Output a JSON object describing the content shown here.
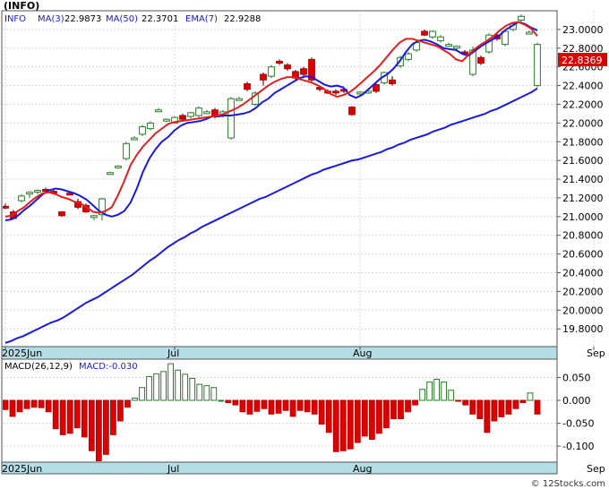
{
  "header": {
    "symbol": "(INFO)",
    "ticker": "INFO",
    "ma3_label": "MA(3)",
    "ma3_value": "22.9873",
    "ma50_label": "MA(50)",
    "ma50_value": "22.3701",
    "ema7_label": "EMA(7)",
    "ema7_value": "22.9288",
    "last_price": "22.8369"
  },
  "macd_header": {
    "label": "MACD(26,12,9)",
    "value_label": "MACD:-0.030"
  },
  "footer": {
    "watermark": "© 12Stocks.com"
  },
  "colors": {
    "up": "#2a7a2a",
    "down": "#dd0000",
    "ma_line": "#1a1adc",
    "ema_line": "#e02020",
    "axis_strip": "#b4dde6",
    "last_price_box": "#dd0000"
  },
  "chart_data": [
    {
      "type": "candlestick",
      "title": "(INFO)",
      "ylim": [
        19.62,
        23.2
      ],
      "y_ticks": [
        "19.8000",
        "20.0000",
        "20.2000",
        "20.4000",
        "20.6000",
        "20.8000",
        "21.0000",
        "21.2000",
        "21.4000",
        "21.6000",
        "21.8000",
        "22.0000",
        "22.2000",
        "22.4000",
        "22.6000",
        "22.8000",
        "23.0000"
      ],
      "x_labels": [
        {
          "label": "2025Jun",
          "index": 0
        },
        {
          "label": "Jul",
          "index": 21
        },
        {
          "label": "Aug",
          "index": 44
        },
        {
          "label": "Sep",
          "index": 73
        }
      ],
      "candles": [
        {
          "o": 21.11,
          "h": 21.14,
          "l": 21.08,
          "c": 21.1
        },
        {
          "o": 21.05,
          "h": 21.07,
          "l": 20.97,
          "c": 20.98
        },
        {
          "o": 21.17,
          "h": 21.24,
          "l": 21.15,
          "c": 21.22
        },
        {
          "o": 21.25,
          "h": 21.27,
          "l": 21.2,
          "c": 21.26
        },
        {
          "o": 21.27,
          "h": 21.29,
          "l": 21.24,
          "c": 21.28
        },
        {
          "o": 21.29,
          "h": 21.31,
          "l": 21.26,
          "c": 21.28
        },
        {
          "o": 21.27,
          "h": 21.3,
          "l": 21.24,
          "c": 21.25
        },
        {
          "o": 21.05,
          "h": 21.06,
          "l": 21.0,
          "c": 21.01
        },
        {
          "o": 21.25,
          "h": 21.27,
          "l": 21.23,
          "c": 21.24
        },
        {
          "o": 21.16,
          "h": 21.19,
          "l": 21.08,
          "c": 21.1
        },
        {
          "o": 21.12,
          "h": 21.14,
          "l": 21.04,
          "c": 21.05
        },
        {
          "o": 21.0,
          "h": 21.02,
          "l": 20.96,
          "c": 21.01
        },
        {
          "o": 21.02,
          "h": 21.2,
          "l": 20.96,
          "c": 21.19
        },
        {
          "o": 21.46,
          "h": 21.48,
          "l": 21.45,
          "c": 21.47
        },
        {
          "o": 21.53,
          "h": 21.55,
          "l": 21.51,
          "c": 21.54
        },
        {
          "o": 21.62,
          "h": 21.8,
          "l": 21.6,
          "c": 21.78
        },
        {
          "o": 21.84,
          "h": 21.86,
          "l": 21.82,
          "c": 21.84
        },
        {
          "o": 21.88,
          "h": 21.98,
          "l": 21.86,
          "c": 21.96
        },
        {
          "o": 21.94,
          "h": 22.02,
          "l": 21.92,
          "c": 22.0
        },
        {
          "o": 22.14,
          "h": 22.16,
          "l": 22.12,
          "c": 22.14
        },
        {
          "o": 22.03,
          "h": 22.05,
          "l": 22.01,
          "c": 22.04
        },
        {
          "o": 22.0,
          "h": 22.07,
          "l": 21.99,
          "c": 22.06
        },
        {
          "o": 22.08,
          "h": 22.1,
          "l": 22.03,
          "c": 22.04
        },
        {
          "o": 22.07,
          "h": 22.12,
          "l": 22.05,
          "c": 22.11
        },
        {
          "o": 22.08,
          "h": 22.18,
          "l": 22.06,
          "c": 22.16
        },
        {
          "o": 22.12,
          "h": 22.14,
          "l": 22.1,
          "c": 22.12
        },
        {
          "o": 22.14,
          "h": 22.16,
          "l": 22.05,
          "c": 22.07
        },
        {
          "o": 22.08,
          "h": 22.14,
          "l": 22.06,
          "c": 22.12
        },
        {
          "o": 21.84,
          "h": 22.28,
          "l": 21.82,
          "c": 22.26
        },
        {
          "o": 22.26,
          "h": 22.28,
          "l": 22.24,
          "c": 22.26
        },
        {
          "o": 22.42,
          "h": 22.44,
          "l": 22.34,
          "c": 22.36
        },
        {
          "o": 22.2,
          "h": 22.34,
          "l": 22.18,
          "c": 22.32
        },
        {
          "o": 22.52,
          "h": 22.54,
          "l": 22.4,
          "c": 22.46
        },
        {
          "o": 22.5,
          "h": 22.62,
          "l": 22.48,
          "c": 22.6
        },
        {
          "o": 22.66,
          "h": 22.68,
          "l": 22.62,
          "c": 22.64
        },
        {
          "o": 22.62,
          "h": 22.64,
          "l": 22.56,
          "c": 22.58
        },
        {
          "o": 22.55,
          "h": 22.57,
          "l": 22.46,
          "c": 22.48
        },
        {
          "o": 22.58,
          "h": 22.6,
          "l": 22.48,
          "c": 22.52
        },
        {
          "o": 22.68,
          "h": 22.7,
          "l": 22.44,
          "c": 22.46
        },
        {
          "o": 22.38,
          "h": 22.4,
          "l": 22.34,
          "c": 22.36
        },
        {
          "o": 22.34,
          "h": 22.36,
          "l": 22.31,
          "c": 22.33
        },
        {
          "o": 22.34,
          "h": 22.36,
          "l": 22.3,
          "c": 22.33
        },
        {
          "o": 22.36,
          "h": 22.38,
          "l": 22.32,
          "c": 22.34
        },
        {
          "o": 22.17,
          "h": 22.18,
          "l": 22.08,
          "c": 22.09
        },
        {
          "o": 22.32,
          "h": 22.34,
          "l": 22.3,
          "c": 22.33
        },
        {
          "o": 22.33,
          "h": 22.36,
          "l": 22.31,
          "c": 22.34
        },
        {
          "o": 22.41,
          "h": 22.42,
          "l": 22.32,
          "c": 22.34
        },
        {
          "o": 22.43,
          "h": 22.55,
          "l": 22.41,
          "c": 22.54
        },
        {
          "o": 22.46,
          "h": 22.5,
          "l": 22.4,
          "c": 22.42
        },
        {
          "o": 22.61,
          "h": 22.72,
          "l": 22.59,
          "c": 22.7
        },
        {
          "o": 22.68,
          "h": 22.76,
          "l": 22.66,
          "c": 22.74
        },
        {
          "o": 22.78,
          "h": 22.88,
          "l": 22.76,
          "c": 22.86
        },
        {
          "o": 22.98,
          "h": 23.0,
          "l": 22.93,
          "c": 22.94
        },
        {
          "o": 22.92,
          "h": 22.99,
          "l": 22.9,
          "c": 22.98
        },
        {
          "o": 22.88,
          "h": 22.94,
          "l": 22.86,
          "c": 22.92
        },
        {
          "o": 22.84,
          "h": 22.86,
          "l": 22.82,
          "c": 22.84
        },
        {
          "o": 22.8,
          "h": 22.83,
          "l": 22.78,
          "c": 22.82
        },
        {
          "o": 22.76,
          "h": 22.78,
          "l": 22.72,
          "c": 22.74
        },
        {
          "o": 22.52,
          "h": 22.82,
          "l": 22.5,
          "c": 22.78
        },
        {
          "o": 22.7,
          "h": 22.72,
          "l": 22.62,
          "c": 22.64
        },
        {
          "o": 22.76,
          "h": 22.96,
          "l": 22.74,
          "c": 22.94
        },
        {
          "o": 22.94,
          "h": 22.96,
          "l": 22.88,
          "c": 22.9
        },
        {
          "o": 22.84,
          "h": 23.0,
          "l": 22.82,
          "c": 22.98
        },
        {
          "o": 23.0,
          "h": 23.08,
          "l": 22.98,
          "c": 23.06
        },
        {
          "o": 23.1,
          "h": 23.16,
          "l": 23.08,
          "c": 23.14
        },
        {
          "o": 22.97,
          "h": 22.99,
          "l": 22.95,
          "c": 22.97
        },
        {
          "o": 22.4,
          "h": 22.86,
          "l": 22.38,
          "c": 22.84
        }
      ],
      "ma3": [
        20.96,
        20.97,
        21.01,
        21.07,
        21.12,
        21.18,
        21.24,
        21.28,
        21.3,
        21.29,
        21.27,
        21.25,
        21.22,
        21.18,
        21.12,
        21.06,
        21.02,
        21.0,
        21.02,
        21.06,
        21.15,
        21.3,
        21.48,
        21.62,
        21.72,
        21.8,
        21.85,
        21.92,
        21.97,
        22.0,
        22.01,
        22.02,
        22.04,
        22.07,
        22.07,
        22.08,
        22.08,
        22.09,
        22.1,
        22.12,
        22.16,
        22.22,
        22.26,
        22.32,
        22.36,
        22.4,
        22.44,
        22.48,
        22.5,
        22.49,
        22.45,
        22.41,
        22.39,
        22.4,
        22.38,
        22.3,
        22.27,
        22.3,
        22.36,
        22.42,
        22.48,
        22.52,
        22.58,
        22.66,
        22.76,
        22.84,
        22.88,
        22.89,
        22.87,
        22.84,
        22.8,
        22.79,
        22.78,
        22.74,
        22.72,
        22.77,
        22.82,
        22.86,
        22.9,
        22.94,
        23.0,
        23.04,
        23.08,
        23.06,
        23.02,
        22.99
      ],
      "ema7": [
        21.0,
        21.01,
        21.06,
        21.1,
        21.16,
        21.21,
        21.25,
        21.26,
        21.24,
        21.21,
        21.19,
        21.16,
        21.14,
        21.1,
        21.05,
        21.04,
        21.06,
        21.1,
        21.23,
        21.38,
        21.55,
        21.66,
        21.75,
        21.82,
        21.89,
        21.94,
        21.99,
        22.01,
        22.02,
        22.03,
        22.04,
        22.05,
        22.06,
        22.07,
        22.08,
        22.1,
        22.13,
        22.16,
        22.2,
        22.25,
        22.3,
        22.35,
        22.4,
        22.44,
        22.47,
        22.49,
        22.49,
        22.47,
        22.45,
        22.43,
        22.4,
        22.36,
        22.31,
        22.28,
        22.3,
        22.33,
        22.38,
        22.44,
        22.5,
        22.56,
        22.63,
        22.71,
        22.79,
        22.86,
        22.9,
        22.9,
        22.88,
        22.86,
        22.84,
        22.82,
        22.78,
        22.74,
        22.68,
        22.66,
        22.73,
        22.79,
        22.84,
        22.88,
        22.93,
        22.99,
        23.04,
        23.07,
        23.08,
        23.05,
        23.01,
        22.93
      ],
      "ma50": [
        19.65,
        19.67,
        19.7,
        19.72,
        19.75,
        19.78,
        19.81,
        19.84,
        19.87,
        19.89,
        19.92,
        19.96,
        20.0,
        20.04,
        20.08,
        20.11,
        20.14,
        20.18,
        20.22,
        20.26,
        20.3,
        20.34,
        20.38,
        20.43,
        20.48,
        20.53,
        20.57,
        20.62,
        20.67,
        20.71,
        20.75,
        20.78,
        20.82,
        20.85,
        20.89,
        20.92,
        20.95,
        20.98,
        21.01,
        21.04,
        21.07,
        21.1,
        21.13,
        21.16,
        21.19,
        21.21,
        21.24,
        21.27,
        21.3,
        21.33,
        21.36,
        21.39,
        21.42,
        21.45,
        21.47,
        21.5,
        21.52,
        21.54,
        21.56,
        21.58,
        21.6,
        21.61,
        21.63,
        21.65,
        21.67,
        21.69,
        21.72,
        21.74,
        21.77,
        21.79,
        21.82,
        21.84,
        21.86,
        21.88,
        21.91,
        21.93,
        21.95,
        21.98,
        22.0,
        22.02,
        22.04,
        22.06,
        22.08,
        22.1,
        22.13,
        22.15,
        22.18,
        22.21,
        22.24,
        22.27,
        22.3,
        22.33,
        22.37
      ]
    },
    {
      "type": "bar",
      "title": "MACD(26,12,9)",
      "ylim": [
        -0.135,
        0.09
      ],
      "y_ticks": [
        "0.050",
        "0.000",
        "-0.050",
        "-0.100"
      ],
      "values": [
        -0.02,
        -0.035,
        -0.025,
        -0.018,
        -0.015,
        -0.016,
        -0.025,
        -0.062,
        -0.075,
        -0.072,
        -0.06,
        -0.08,
        -0.11,
        -0.132,
        -0.118,
        -0.075,
        -0.045,
        -0.015,
        0.005,
        0.028,
        0.052,
        0.058,
        0.063,
        0.08,
        0.066,
        0.057,
        0.048,
        0.035,
        0.032,
        0.028,
        0.0,
        -0.005,
        -0.01,
        -0.025,
        -0.03,
        -0.024,
        -0.018,
        -0.03,
        -0.028,
        -0.022,
        -0.035,
        -0.022,
        -0.025,
        -0.03,
        -0.052,
        -0.07,
        -0.112,
        -0.11,
        -0.106,
        -0.092,
        -0.078,
        -0.085,
        -0.072,
        -0.06,
        -0.04,
        -0.04,
        -0.025,
        -0.01,
        0.024,
        0.04,
        0.046,
        0.04,
        0.022,
        -0.002,
        -0.01,
        -0.03,
        -0.04,
        -0.07,
        -0.045,
        -0.036,
        -0.03,
        -0.018,
        -0.005,
        0.016,
        -0.03
      ]
    }
  ]
}
